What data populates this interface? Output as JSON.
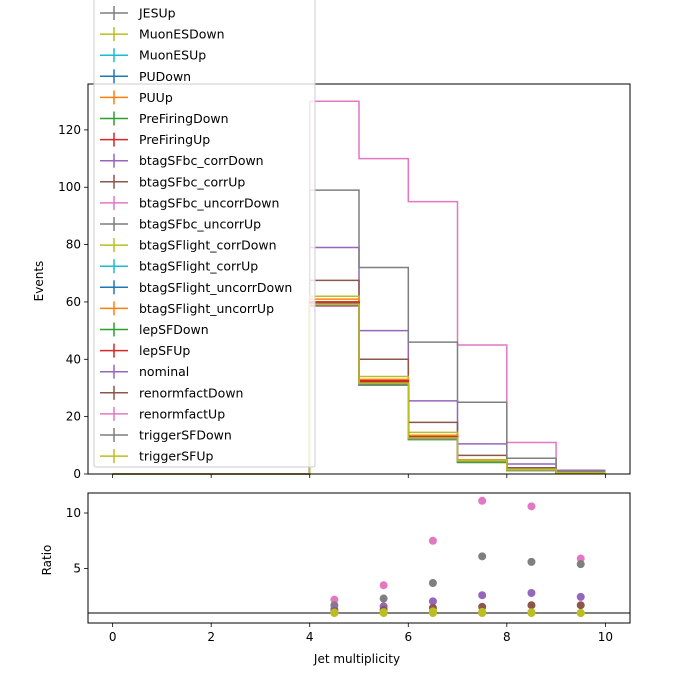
{
  "chart_data": [
    {
      "type": "step",
      "title": "",
      "xlabel": "",
      "ylabel": "Events",
      "xlim": [
        -0.5,
        10.5
      ],
      "ylim": [
        0,
        136
      ],
      "xticks": [
        "0",
        "2",
        "4",
        "6",
        "8",
        "10"
      ],
      "yticks": [
        "0",
        "20",
        "40",
        "60",
        "80",
        "100",
        "120"
      ],
      "bin_edges": [
        0,
        1,
        2,
        3,
        4,
        5,
        6,
        7,
        8,
        9,
        10
      ],
      "legend_placement": "upper-left",
      "series": [
        {
          "name": "JESUp",
          "color": "#7f7f7f",
          "values": [
            0,
            0,
            0,
            0,
            59,
            31.5,
            12.5,
            4.5,
            1.5,
            0.5
          ]
        },
        {
          "name": "MuonESDown",
          "color": "#bcbd22",
          "values": [
            0,
            0,
            0,
            0,
            59,
            31.5,
            12.5,
            4.5,
            1.5,
            0.5
          ]
        },
        {
          "name": "MuonESUp",
          "color": "#17becf",
          "values": [
            0,
            0,
            0,
            0,
            59,
            31.5,
            12.5,
            4.5,
            1.5,
            0.5
          ]
        },
        {
          "name": "PUDown",
          "color": "#1f77b4",
          "values": [
            0,
            0,
            0,
            0,
            59,
            31.5,
            12.5,
            4.5,
            1.5,
            0.5
          ]
        },
        {
          "name": "PUUp",
          "color": "#ff7f0e",
          "values": [
            0,
            0,
            0,
            0,
            60,
            32,
            13,
            4.5,
            1.5,
            0.5
          ]
        },
        {
          "name": "PreFiringDown",
          "color": "#2ca02c",
          "values": [
            0,
            0,
            0,
            0,
            58.5,
            31,
            12,
            4,
            1.2,
            0.4
          ]
        },
        {
          "name": "PreFiringUp",
          "color": "#d62728",
          "values": [
            0,
            0,
            0,
            0,
            59.5,
            32,
            13,
            4.5,
            1.5,
            0.5
          ]
        },
        {
          "name": "btagSFbc_corrDown",
          "color": "#9467bd",
          "values": [
            0,
            0,
            0,
            0,
            79,
            50,
            25.5,
            10.5,
            3.5,
            1.3
          ]
        },
        {
          "name": "btagSFbc_corrUp",
          "color": "#8c564b",
          "values": [
            0,
            0,
            0,
            0,
            67.5,
            40,
            18,
            6.5,
            2.2,
            0.8
          ]
        },
        {
          "name": "btagSFbc_uncorrDown",
          "color": "#e377c2",
          "values": [
            0,
            0,
            0,
            0,
            130,
            110,
            95,
            45,
            11,
            1
          ]
        },
        {
          "name": "btagSFbc_uncorrUp",
          "color": "#7f7f7f",
          "values": [
            0,
            0,
            0,
            0,
            99,
            72,
            46,
            25,
            5.5,
            1
          ]
        },
        {
          "name": "btagSFlight_corrDown",
          "color": "#bcbd22",
          "values": [
            0,
            0,
            0,
            0,
            62,
            34,
            14.5,
            5,
            1.6,
            0.5
          ]
        },
        {
          "name": "btagSFlight_corrUp",
          "color": "#17becf",
          "values": [
            0,
            0,
            0,
            0,
            59,
            31.5,
            12.5,
            4.5,
            1.5,
            0.5
          ]
        },
        {
          "name": "btagSFlight_uncorrDown",
          "color": "#1f77b4",
          "values": [
            0,
            0,
            0,
            0,
            59,
            31.5,
            12.5,
            4.5,
            1.5,
            0.5
          ]
        },
        {
          "name": "btagSFlight_uncorrUp",
          "color": "#ff7f0e",
          "values": [
            0,
            0,
            0,
            0,
            61,
            33,
            13.5,
            4.8,
            1.5,
            0.5
          ]
        },
        {
          "name": "lepSFDown",
          "color": "#2ca02c",
          "values": [
            0,
            0,
            0,
            0,
            58.5,
            31,
            12.2,
            4.2,
            1.3,
            0.4
          ]
        },
        {
          "name": "lepSFUp",
          "color": "#d62728",
          "values": [
            0,
            0,
            0,
            0,
            60,
            32.5,
            13,
            4.6,
            1.5,
            0.5
          ]
        },
        {
          "name": "nominal",
          "color": "#9467bd",
          "values": [
            0,
            0,
            0,
            0,
            59,
            31.5,
            12.5,
            4.5,
            1.5,
            0.5
          ]
        },
        {
          "name": "renormfactDown",
          "color": "#8c564b",
          "values": [
            0,
            0,
            0,
            0,
            59.5,
            31.8,
            12.8,
            4.6,
            1.5,
            0.5
          ]
        },
        {
          "name": "renormfactUp",
          "color": "#e377c2",
          "values": [
            0,
            0,
            0,
            0,
            58.5,
            31.2,
            12.3,
            4.4,
            1.4,
            0.4
          ]
        },
        {
          "name": "triggerSFDown",
          "color": "#7f7f7f",
          "values": [
            0,
            0,
            0,
            0,
            58.8,
            31.3,
            12.4,
            4.4,
            1.4,
            0.5
          ]
        },
        {
          "name": "triggerSFUp",
          "color": "#bcbd22",
          "values": [
            0,
            0,
            0,
            0,
            59.2,
            31.7,
            12.6,
            4.6,
            1.5,
            0.5
          ]
        }
      ]
    },
    {
      "type": "scatter",
      "xlabel": "Jet multiplicity",
      "ylabel": "Ratio",
      "xlim": [
        -0.5,
        10.5
      ],
      "ylim": [
        0.1,
        11.8
      ],
      "xticks": [
        "0",
        "2",
        "4",
        "6",
        "8",
        "10"
      ],
      "yticks": [
        "5",
        "10"
      ],
      "reference_line": 1,
      "x": [
        4.5,
        5.5,
        6.5,
        7.5,
        8.5,
        9.5
      ],
      "series": [
        {
          "name": "btagSFbc_uncorrDown",
          "color": "#e377c2",
          "values": [
            2.2,
            3.5,
            7.5,
            11.1,
            10.6,
            5.9
          ]
        },
        {
          "name": "btagSFbc_uncorrUp",
          "color": "#7f7f7f",
          "values": [
            1.7,
            2.3,
            3.7,
            6.1,
            5.6,
            5.4
          ]
        },
        {
          "name": "btagSFbc_corrDown",
          "color": "#9467bd",
          "values": [
            1.35,
            1.6,
            2.05,
            2.6,
            2.8,
            2.45
          ]
        },
        {
          "name": "btagSFbc_corrUp",
          "color": "#8c564b",
          "values": [
            1.15,
            1.27,
            1.45,
            1.55,
            1.7,
            1.7
          ]
        },
        {
          "name": "btagSFlight_corrDown",
          "color": "#bcbd22",
          "values": [
            1.05,
            1.08,
            1.15,
            1.1,
            1.07,
            1.0
          ]
        },
        {
          "name": "triggerSFUp",
          "color": "#bcbd22",
          "values": [
            1.0,
            1.0,
            1.0,
            1.0,
            1.0,
            1.0
          ]
        }
      ]
    }
  ]
}
